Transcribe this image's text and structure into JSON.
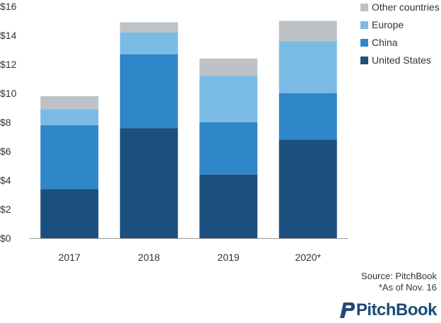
{
  "chart_data": {
    "type": "bar",
    "stacked": true,
    "categories": [
      "2017",
      "2018",
      "2019",
      "2020*"
    ],
    "series": [
      {
        "name": "United States",
        "color": "#1b4f7e",
        "values": [
          3.4,
          7.6,
          4.4,
          6.8
        ]
      },
      {
        "name": "China",
        "color": "#2f86c8",
        "values": [
          4.4,
          5.1,
          3.6,
          3.2
        ]
      },
      {
        "name": "Europe",
        "color": "#7abbe6",
        "values": [
          1.1,
          1.5,
          3.2,
          3.6
        ]
      },
      {
        "name": "Other countries",
        "color": "#bdc2c6",
        "values": [
          0.9,
          0.7,
          1.2,
          1.4
        ]
      }
    ],
    "ylim": [
      0,
      16
    ],
    "yticks": [
      "$0",
      "$2",
      "$4",
      "$6",
      "$8",
      "$10",
      "$12",
      "$14",
      "$16"
    ],
    "ytick_values": [
      0,
      2,
      4,
      6,
      8,
      10,
      12,
      14,
      16
    ],
    "grid": false,
    "legend": "top-right",
    "legend_order": [
      "Other countries",
      "Europe",
      "China",
      "United States"
    ]
  },
  "footer": {
    "source": "Source: PitchBook",
    "note": "*As of Nov. 16"
  },
  "logo": {
    "text": "PitchBook",
    "color": "#1e4a78"
  }
}
